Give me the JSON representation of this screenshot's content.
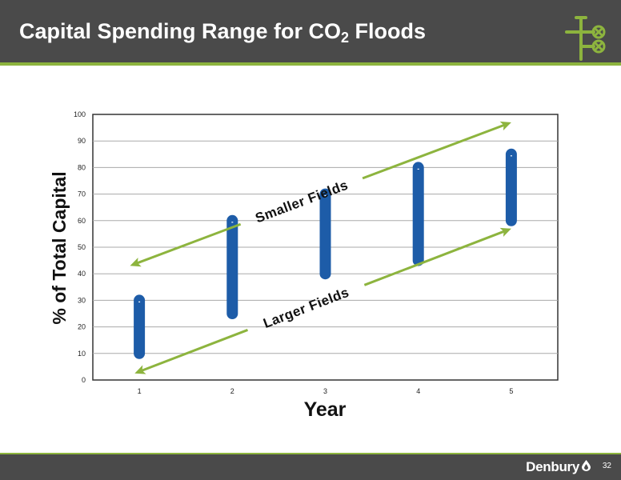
{
  "slide": {
    "title_main": "Capital Spending Range for CO",
    "title_sub": "2",
    "title_end": " Floods",
    "brand": "Denbury",
    "page_number": "32",
    "logo_icon": "pipe-valve-icon",
    "brand_icon": "drop-icon",
    "colors": {
      "header_bg": "#4a4a4a",
      "accent_green": "#8db43e",
      "bar_blue": "#1d5ca8"
    }
  },
  "chart_data": {
    "type": "bar",
    "subtype": "floating-range",
    "categories": [
      "1",
      "2",
      "3",
      "4",
      "5"
    ],
    "series": [
      {
        "low": [
          10,
          25,
          40,
          45,
          60
        ],
        "high": [
          30,
          60,
          70,
          80,
          85
        ]
      }
    ],
    "xlabel": "Year",
    "ylabel": "% of  Total Capital",
    "ylim": [
      0,
      100
    ],
    "yticks": [
      "0",
      "10",
      "20",
      "30",
      "40",
      "50",
      "60",
      "70",
      "80",
      "90",
      "100"
    ],
    "grid": true,
    "annotations": [
      {
        "label": "Smaller  Fields",
        "from": {
          "x": 0.9,
          "y": 43
        },
        "to": {
          "x": 5.0,
          "y": 97
        },
        "double_headed": true
      },
      {
        "label": "Larger Fields",
        "from": {
          "x": 0.95,
          "y": 2.5
        },
        "to": {
          "x": 5.0,
          "y": 57
        },
        "double_headed": true
      }
    ]
  }
}
